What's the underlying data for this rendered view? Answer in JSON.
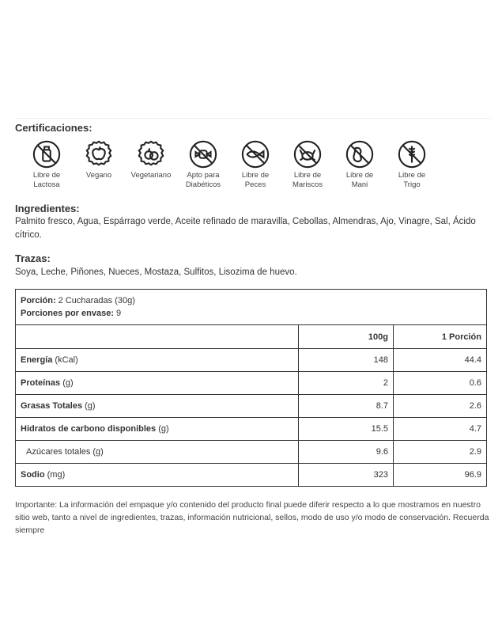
{
  "certifications": {
    "title": "Certificaciones:",
    "items": [
      {
        "icon": "no-milk-icon",
        "l1": "Libre de",
        "l2": "Lactosa"
      },
      {
        "icon": "vegan-apple-icon",
        "l1": "Vegano",
        "l2": ""
      },
      {
        "icon": "vegetarian-icon",
        "l1": "Vegetariano",
        "l2": ""
      },
      {
        "icon": "no-candy-icon",
        "l1": "Apto para",
        "l2": "Diabéticos"
      },
      {
        "icon": "no-fish-icon",
        "l1": "Libre de",
        "l2": "Peces"
      },
      {
        "icon": "no-crab-icon",
        "l1": "Libre de",
        "l2": "Mariscos"
      },
      {
        "icon": "no-peanut-icon",
        "l1": "Libre de",
        "l2": "Mani"
      },
      {
        "icon": "no-wheat-icon",
        "l1": "Libre de",
        "l2": "Trigo"
      }
    ]
  },
  "ingredients": {
    "title": "Ingredientes:",
    "text": "Palmito fresco, Agua, Espárrago verde, Aceite refinado de maravilla, Cebollas, Almendras, Ajo, Vinagre, Sal, Ácido cítrico."
  },
  "traces": {
    "title": "Trazas:",
    "text": "Soya, Leche, Piñones, Nueces, Mostaza, Sulfitos, Lisozima de huevo."
  },
  "nutrition": {
    "portion_label": "Porción:",
    "portion_value": " 2 Cucharadas (30g)",
    "per_pack_label": "Porciones por envase:",
    "per_pack_value": " 9",
    "col_100g": "100g",
    "col_portion": "1 Porción",
    "rows": [
      {
        "bold": "Energía",
        "unit": " (kCal)",
        "v100": "148",
        "vp": "44.4"
      },
      {
        "bold": "Proteínas",
        "unit": " (g)",
        "v100": "2",
        "vp": "0.6"
      },
      {
        "bold": "Grasas Totales",
        "unit": " (g)",
        "v100": "8.7",
        "vp": "2.6"
      },
      {
        "bold": "Hidratos de carbono disponibles",
        "unit": " (g)",
        "v100": "15.5",
        "vp": "4.7"
      },
      {
        "bold": "",
        "unit": "Azúcares totales (g)",
        "v100": "9.6",
        "vp": "2.9"
      },
      {
        "bold": "Sodio",
        "unit": " (mg)",
        "v100": "323",
        "vp": "96.9"
      }
    ]
  },
  "note": "Importante: La información del empaque y/o contenido del producto final puede diferir respecto a lo que mostramos en nuestro sitio web, tanto a nivel de ingredientes, trazas, información nutricional, sellos, modo de uso y/o modo de conservación. Recuerda siempre"
}
